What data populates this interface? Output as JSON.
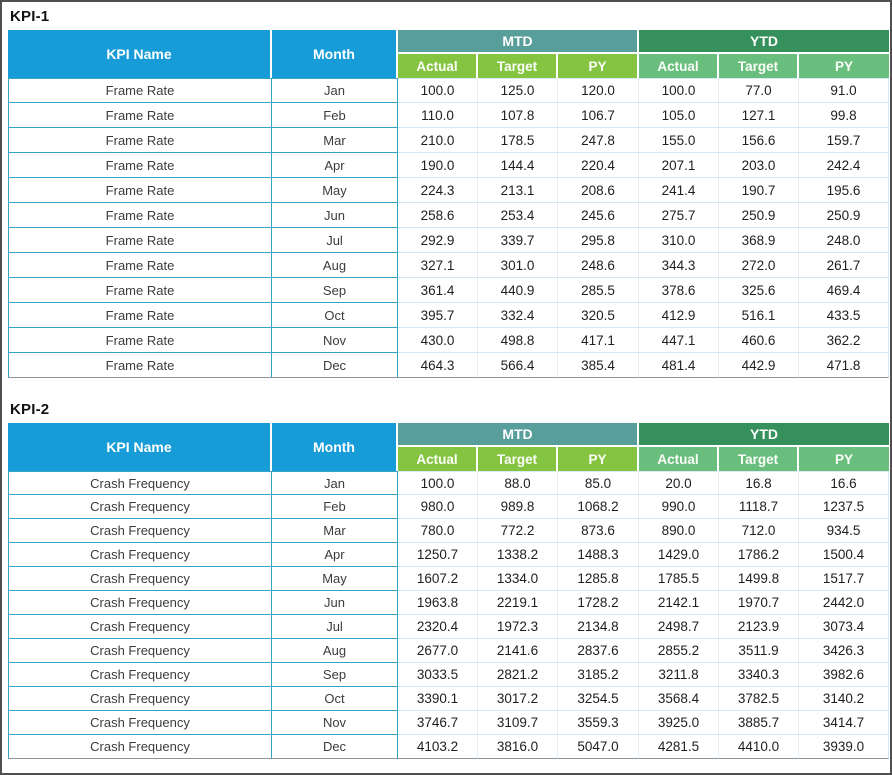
{
  "colors": {
    "header_blue": "#189cd7",
    "mtd_band": "#589e9b",
    "ytd_band": "#35905c",
    "mtd_subheader": "#85c441",
    "ytd_subheader": "#69be7e",
    "cell_border_teal": "#35a3c4",
    "row_line_light": "#cfe8f4",
    "frame_border": "#4f4f4f"
  },
  "tables": [
    {
      "title": "KPI-1",
      "col_kpi_name": "KPI Name",
      "col_month": "Month",
      "group_mtd": "MTD",
      "group_ytd": "YTD",
      "sub_headers": [
        "Actual",
        "Target",
        "PY"
      ],
      "rows": [
        {
          "kpi": "Frame Rate",
          "month": "Jan",
          "values": [
            "100.0",
            "125.0",
            "120.0",
            "100.0",
            "77.0",
            "91.0"
          ]
        },
        {
          "kpi": "Frame Rate",
          "month": "Feb",
          "values": [
            "110.0",
            "107.8",
            "106.7",
            "105.0",
            "127.1",
            "99.8"
          ]
        },
        {
          "kpi": "Frame Rate",
          "month": "Mar",
          "values": [
            "210.0",
            "178.5",
            "247.8",
            "155.0",
            "156.6",
            "159.7"
          ]
        },
        {
          "kpi": "Frame Rate",
          "month": "Apr",
          "values": [
            "190.0",
            "144.4",
            "220.4",
            "207.1",
            "203.0",
            "242.4"
          ]
        },
        {
          "kpi": "Frame Rate",
          "month": "May",
          "values": [
            "224.3",
            "213.1",
            "208.6",
            "241.4",
            "190.7",
            "195.6"
          ]
        },
        {
          "kpi": "Frame Rate",
          "month": "Jun",
          "values": [
            "258.6",
            "253.4",
            "245.6",
            "275.7",
            "250.9",
            "250.9"
          ]
        },
        {
          "kpi": "Frame Rate",
          "month": "Jul",
          "values": [
            "292.9",
            "339.7",
            "295.8",
            "310.0",
            "368.9",
            "248.0"
          ]
        },
        {
          "kpi": "Frame Rate",
          "month": "Aug",
          "values": [
            "327.1",
            "301.0",
            "248.6",
            "344.3",
            "272.0",
            "261.7"
          ]
        },
        {
          "kpi": "Frame Rate",
          "month": "Sep",
          "values": [
            "361.4",
            "440.9",
            "285.5",
            "378.6",
            "325.6",
            "469.4"
          ]
        },
        {
          "kpi": "Frame Rate",
          "month": "Oct",
          "values": [
            "395.7",
            "332.4",
            "320.5",
            "412.9",
            "516.1",
            "433.5"
          ]
        },
        {
          "kpi": "Frame Rate",
          "month": "Nov",
          "values": [
            "430.0",
            "498.8",
            "417.1",
            "447.1",
            "460.6",
            "362.2"
          ]
        },
        {
          "kpi": "Frame Rate",
          "month": "Dec",
          "values": [
            "464.3",
            "566.4",
            "385.4",
            "481.4",
            "442.9",
            "471.8"
          ]
        }
      ]
    },
    {
      "title": "KPI-2",
      "col_kpi_name": "KPI Name",
      "col_month": "Month",
      "group_mtd": "MTD",
      "group_ytd": "YTD",
      "sub_headers": [
        "Actual",
        "Target",
        "PY"
      ],
      "rows": [
        {
          "kpi": "Crash Frequency",
          "month": "Jan",
          "values": [
            "100.0",
            "88.0",
            "85.0",
            "20.0",
            "16.8",
            "16.6"
          ]
        },
        {
          "kpi": "Crash Frequency",
          "month": "Feb",
          "values": [
            "980.0",
            "989.8",
            "1068.2",
            "990.0",
            "1118.7",
            "1237.5"
          ]
        },
        {
          "kpi": "Crash Frequency",
          "month": "Mar",
          "values": [
            "780.0",
            "772.2",
            "873.6",
            "890.0",
            "712.0",
            "934.5"
          ]
        },
        {
          "kpi": "Crash Frequency",
          "month": "Apr",
          "values": [
            "1250.7",
            "1338.2",
            "1488.3",
            "1429.0",
            "1786.2",
            "1500.4"
          ]
        },
        {
          "kpi": "Crash Frequency",
          "month": "May",
          "values": [
            "1607.2",
            "1334.0",
            "1285.8",
            "1785.5",
            "1499.8",
            "1517.7"
          ]
        },
        {
          "kpi": "Crash Frequency",
          "month": "Jun",
          "values": [
            "1963.8",
            "2219.1",
            "1728.2",
            "2142.1",
            "1970.7",
            "2442.0"
          ]
        },
        {
          "kpi": "Crash Frequency",
          "month": "Jul",
          "values": [
            "2320.4",
            "1972.3",
            "2134.8",
            "2498.7",
            "2123.9",
            "3073.4"
          ]
        },
        {
          "kpi": "Crash Frequency",
          "month": "Aug",
          "values": [
            "2677.0",
            "2141.6",
            "2837.6",
            "2855.2",
            "3511.9",
            "3426.3"
          ]
        },
        {
          "kpi": "Crash Frequency",
          "month": "Sep",
          "values": [
            "3033.5",
            "2821.2",
            "3185.2",
            "3211.8",
            "3340.3",
            "3982.6"
          ]
        },
        {
          "kpi": "Crash Frequency",
          "month": "Oct",
          "values": [
            "3390.1",
            "3017.2",
            "3254.5",
            "3568.4",
            "3782.5",
            "3140.2"
          ]
        },
        {
          "kpi": "Crash Frequency",
          "month": "Nov",
          "values": [
            "3746.7",
            "3109.7",
            "3559.3",
            "3925.0",
            "3885.7",
            "3414.7"
          ]
        },
        {
          "kpi": "Crash Frequency",
          "month": "Dec",
          "values": [
            "4103.2",
            "3816.0",
            "5047.0",
            "4281.5",
            "4410.0",
            "3939.0"
          ]
        }
      ]
    }
  ]
}
